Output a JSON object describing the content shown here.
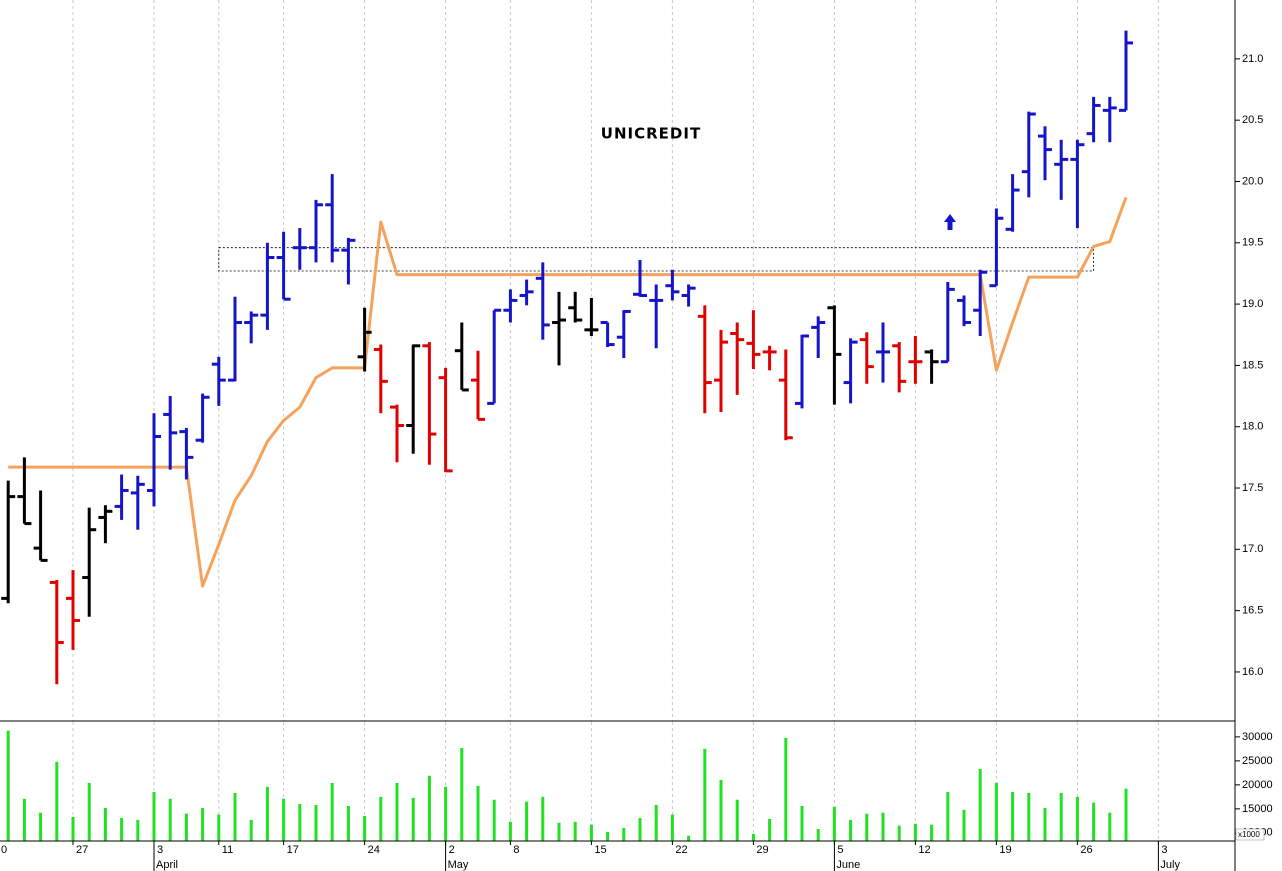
{
  "chart_data": {
    "type": "ohlc",
    "title": "UNICREDIT",
    "categories": [
      "0",
      null,
      null,
      null,
      null,
      "27",
      null,
      null,
      null,
      null,
      "3",
      null,
      null,
      null,
      "11",
      null,
      null,
      null,
      "17",
      null,
      null,
      null,
      null,
      "24",
      null,
      null,
      null,
      null,
      "2",
      null,
      null,
      null,
      "8",
      null,
      null,
      null,
      null,
      "15",
      null,
      null,
      null,
      null,
      "22",
      null,
      null,
      null,
      null,
      "29",
      null,
      null,
      null,
      null,
      "5",
      null,
      null,
      null,
      null,
      "12",
      null,
      null,
      null,
      null,
      "19",
      null,
      null,
      null,
      null,
      "26",
      null,
      null,
      null,
      null,
      "3"
    ],
    "month_labels": [
      null,
      null,
      null,
      null,
      null,
      null,
      null,
      null,
      null,
      null,
      "April",
      null,
      null,
      null,
      null,
      null,
      null,
      null,
      null,
      null,
      null,
      null,
      null,
      null,
      null,
      null,
      null,
      null,
      "May",
      null,
      null,
      null,
      null,
      null,
      null,
      null,
      null,
      null,
      null,
      null,
      null,
      null,
      null,
      null,
      null,
      null,
      null,
      null,
      null,
      null,
      null,
      null,
      "June",
      null,
      null,
      null,
      null,
      null,
      null,
      null,
      null,
      null,
      null,
      null,
      null,
      null,
      null,
      null,
      null,
      null,
      null,
      null,
      "July"
    ],
    "open": [
      null,
      16.6,
      17.43,
      17.01,
      16.73,
      16.6,
      16.77,
      17.26,
      17.35,
      17.46,
      17.48,
      18.1,
      17.96,
      17.89,
      18.51,
      18.38,
      18.85,
      18.91,
      19.38,
      19.46,
      19.46,
      19.81,
      19.44,
      18.57,
      18.63,
      18.16,
      18.01,
      18.66,
      18.4,
      18.62,
      18.38,
      18.19,
      18.95,
      19.07,
      19.21,
      18.85,
      18.97,
      18.79,
      18.85,
      18.73,
      19.08,
      19.03,
      19.15,
      19.07,
      18.9,
      18.38,
      18.76,
      18.68,
      18.61,
      18.38,
      18.19,
      18.81,
      18.97,
      18.36,
      18.71,
      18.61,
      18.66,
      18.53,
      18.61,
      18.53,
      19.03,
      18.95,
      19.15,
      19.61,
      20.08,
      20.37,
      20.14,
      20.18,
      20.39,
      20.58,
      20.58,
      null,
      null
    ],
    "high": [
      null,
      17.56,
      17.75,
      17.48,
      16.75,
      16.83,
      17.34,
      17.36,
      17.61,
      17.6,
      18.11,
      18.25,
      17.99,
      18.27,
      18.57,
      19.06,
      18.94,
      19.5,
      19.59,
      19.62,
      19.85,
      20.06,
      19.54,
      18.97,
      18.67,
      18.18,
      18.67,
      18.69,
      18.48,
      18.85,
      18.62,
      18.95,
      19.12,
      19.2,
      19.34,
      19.1,
      19.1,
      19.05,
      18.85,
      18.95,
      19.36,
      19.16,
      19.28,
      19.16,
      18.99,
      18.79,
      18.85,
      18.95,
      18.66,
      18.63,
      18.75,
      18.9,
      18.99,
      18.72,
      18.77,
      18.85,
      18.69,
      18.74,
      18.63,
      19.18,
      19.07,
      19.28,
      19.78,
      20.06,
      20.57,
      20.45,
      20.34,
      20.34,
      20.69,
      20.69,
      21.23,
      null,
      null
    ],
    "low": [
      null,
      16.56,
      17.21,
      16.91,
      15.9,
      16.18,
      16.45,
      17.05,
      17.24,
      17.16,
      17.35,
      17.65,
      17.57,
      17.87,
      18.17,
      18.37,
      18.68,
      18.79,
      19.04,
      19.28,
      19.34,
      19.34,
      19.16,
      18.45,
      18.11,
      17.71,
      17.78,
      17.69,
      17.63,
      18.3,
      18.06,
      18.19,
      18.85,
      18.99,
      18.71,
      18.5,
      18.85,
      18.74,
      18.65,
      18.56,
      19.06,
      18.64,
      19.03,
      18.98,
      18.11,
      18.12,
      18.26,
      18.47,
      18.46,
      17.89,
      18.15,
      18.56,
      18.18,
      18.19,
      18.35,
      18.36,
      18.28,
      18.35,
      18.35,
      18.53,
      18.82,
      18.74,
      19.15,
      19.59,
      19.87,
      20.01,
      19.85,
      19.62,
      20.32,
      20.32,
      20.58,
      null,
      null
    ],
    "close": [
      null,
      17.43,
      17.21,
      16.91,
      16.24,
      16.42,
      17.16,
      17.31,
      17.48,
      17.53,
      17.92,
      17.95,
      17.75,
      18.24,
      18.38,
      18.85,
      18.91,
      19.38,
      19.04,
      19.46,
      19.81,
      19.44,
      19.52,
      18.77,
      18.37,
      18.01,
      18.66,
      17.94,
      17.64,
      18.3,
      18.06,
      18.95,
      19.03,
      19.1,
      18.83,
      18.87,
      18.87,
      18.79,
      18.67,
      18.94,
      19.07,
      19.03,
      19.1,
      19.13,
      18.36,
      18.69,
      18.71,
      18.59,
      18.61,
      17.91,
      18.74,
      18.85,
      18.59,
      18.69,
      18.49,
      18.61,
      18.37,
      18.53,
      18.53,
      19.12,
      18.85,
      19.26,
      19.7,
      19.93,
      20.55,
      20.26,
      20.18,
      20.3,
      20.62,
      20.6,
      21.13,
      null,
      null
    ],
    "bar_colors": [
      null,
      "#000000",
      "#000000",
      "#000000",
      "#e00000",
      "#e00000",
      "#000000",
      "#000000",
      "#1414c8",
      "#1414c8",
      "#1414c8",
      "#1414c8",
      "#1414c8",
      "#1414c8",
      "#1414c8",
      "#1414c8",
      "#1414c8",
      "#1414c8",
      "#1414c8",
      "#1414c8",
      "#1414c8",
      "#1414c8",
      "#1414c8",
      "#000000",
      "#e00000",
      "#e00000",
      "#000000",
      "#e00000",
      "#e00000",
      "#000000",
      "#e00000",
      "#1414c8",
      "#1414c8",
      "#1414c8",
      "#1414c8",
      "#000000",
      "#000000",
      "#000000",
      "#1414c8",
      "#1414c8",
      "#1414c8",
      "#1414c8",
      "#1414c8",
      "#1414c8",
      "#e00000",
      "#e00000",
      "#e00000",
      "#e00000",
      "#e00000",
      "#e00000",
      "#1414c8",
      "#1414c8",
      "#000000",
      "#1414c8",
      "#e00000",
      "#1414c8",
      "#e00000",
      "#e00000",
      "#000000",
      "#1414c8",
      "#1414c8",
      "#1414c8",
      "#1414c8",
      "#1414c8",
      "#1414c8",
      "#1414c8",
      "#1414c8",
      "#1414c8",
      "#1414c8",
      "#1414c8",
      "#1414c8",
      null,
      null
    ],
    "stop_line": {
      "color": "#f5a35c",
      "values": [
        null,
        17.67,
        17.67,
        17.67,
        17.67,
        17.67,
        17.67,
        17.67,
        17.67,
        17.67,
        17.67,
        17.67,
        17.67,
        16.7,
        17.04,
        17.4,
        17.6,
        17.88,
        18.05,
        18.16,
        18.4,
        18.48,
        18.48,
        18.48,
        19.67,
        19.24,
        19.24,
        19.24,
        19.24,
        19.24,
        19.24,
        19.24,
        19.24,
        19.24,
        19.24,
        19.24,
        19.24,
        19.24,
        19.24,
        19.24,
        19.24,
        19.24,
        19.24,
        19.24,
        19.24,
        19.24,
        19.24,
        19.24,
        19.24,
        19.24,
        19.24,
        19.24,
        19.24,
        19.24,
        19.24,
        19.24,
        19.24,
        19.24,
        19.24,
        19.24,
        19.24,
        19.24,
        18.46,
        18.85,
        19.22,
        19.22,
        19.22,
        19.22,
        19.47,
        19.51,
        19.87,
        null,
        null
      ]
    },
    "highlight_box": {
      "x": [
        14,
        68
      ],
      "y": [
        19.27,
        19.46
      ]
    },
    "ylim": [
      15.6,
      21.48
    ],
    "yticks": [
      {
        "value": 16,
        "label": "16.0"
      },
      {
        "value": 16.5,
        "label": "16.5"
      },
      {
        "value": 17,
        "label": "17.0"
      },
      {
        "value": 17.5,
        "label": "17.5"
      },
      {
        "value": 18,
        "label": "18.0"
      },
      {
        "value": 18.5,
        "label": "18.5"
      },
      {
        "value": 19,
        "label": "19.0"
      },
      {
        "value": 19.5,
        "label": "19.5"
      },
      {
        "value": 20,
        "label": "20.0"
      },
      {
        "value": 20.5,
        "label": "20.5"
      },
      {
        "value": 21,
        "label": "21.0"
      }
    ],
    "grid": true,
    "volume": {
      "color": "#22e022",
      "unit_label": "x1000",
      "values": [
        null,
        31300,
        17100,
        14200,
        24800,
        13300,
        20400,
        15200,
        13100,
        12700,
        18500,
        17100,
        14000,
        15200,
        13800,
        18300,
        12700,
        19600,
        17100,
        16000,
        15800,
        20400,
        15600,
        13500,
        17500,
        20400,
        17300,
        21900,
        19600,
        27700,
        19800,
        16900,
        12300,
        16500,
        17500,
        12100,
        12300,
        11700,
        10200,
        11000,
        13100,
        15800,
        13800,
        9400,
        27500,
        21000,
        16900,
        9800,
        12900,
        29800,
        15600,
        10800,
        15400,
        12700,
        14000,
        14200,
        11500,
        11900,
        11700,
        18500,
        14800,
        23300,
        20400,
        18500,
        18300,
        15200,
        18300,
        17500,
        16300,
        14200,
        19200,
        null,
        null
      ],
      "ylim": [
        8300,
        33100
      ],
      "yticks": [
        10000,
        15000,
        20000,
        25000,
        30000
      ]
    }
  }
}
